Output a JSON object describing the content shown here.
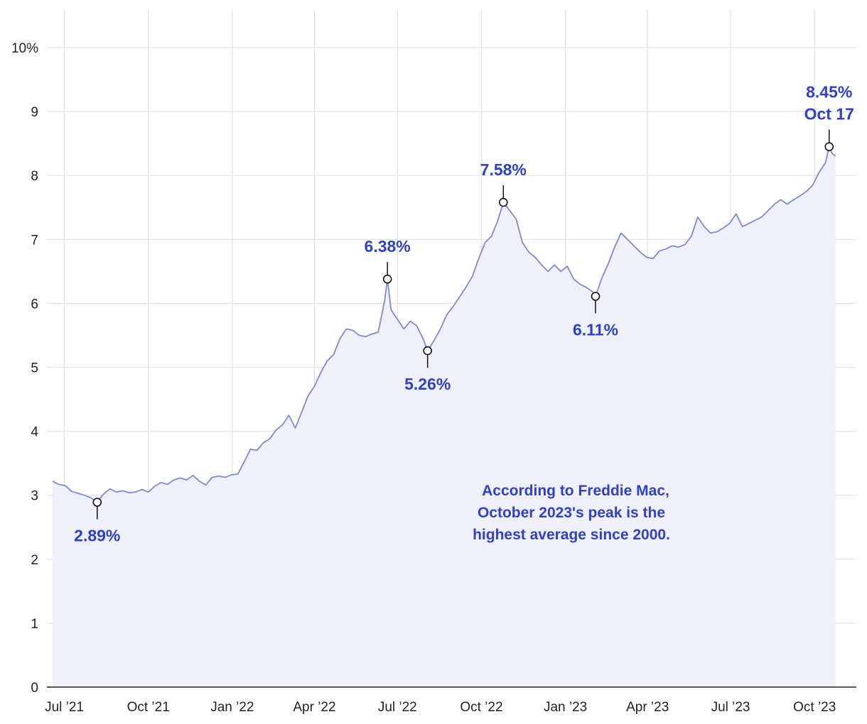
{
  "chart_data": {
    "type": "area",
    "y_axis": {
      "ylim": [
        0,
        10
      ],
      "ticks": [
        {
          "value": 0,
          "label": "0"
        },
        {
          "value": 1,
          "label": "1"
        },
        {
          "value": 2,
          "label": "2"
        },
        {
          "value": 3,
          "label": "3"
        },
        {
          "value": 4,
          "label": "4"
        },
        {
          "value": 5,
          "label": "5"
        },
        {
          "value": 6,
          "label": "6"
        },
        {
          "value": 7,
          "label": "7"
        },
        {
          "value": 8,
          "label": "8"
        },
        {
          "value": 9,
          "label": "9"
        },
        {
          "value": 10,
          "label": "10%"
        }
      ]
    },
    "x_axis": {
      "xlim": [
        "2021-06-15",
        "2023-11-08"
      ],
      "ticks": [
        {
          "date": "2021-07-01",
          "label": "Jul ’21"
        },
        {
          "date": "2021-10-01",
          "label": "Oct ’21"
        },
        {
          "date": "2022-01-01",
          "label": "Jan ’22"
        },
        {
          "date": "2022-04-01",
          "label": "Apr ’22"
        },
        {
          "date": "2022-07-01",
          "label": "Jul ’22"
        },
        {
          "date": "2022-10-01",
          "label": "Oct ’22"
        },
        {
          "date": "2023-01-01",
          "label": "Jan ’23"
        },
        {
          "date": "2023-04-01",
          "label": "Apr ’23"
        },
        {
          "date": "2023-07-01",
          "label": "Jul ’23"
        },
        {
          "date": "2023-10-01",
          "label": "Oct ’23"
        }
      ]
    },
    "grid": true,
    "series": [
      {
        "color": "#7b8ad4",
        "fill": "#eff0fa",
        "points": [
          [
            "2021-06-18",
            3.22
          ],
          [
            "2021-06-25",
            3.17
          ],
          [
            "2021-07-02",
            3.15
          ],
          [
            "2021-07-09",
            3.06
          ],
          [
            "2021-07-16",
            3.03
          ],
          [
            "2021-07-23",
            3.0
          ],
          [
            "2021-07-30",
            2.96
          ],
          [
            "2021-08-06",
            2.89
          ],
          [
            "2021-08-13",
            3.02
          ],
          [
            "2021-08-20",
            3.1
          ],
          [
            "2021-08-27",
            3.05
          ],
          [
            "2021-09-03",
            3.07
          ],
          [
            "2021-09-10",
            3.04
          ],
          [
            "2021-09-17",
            3.05
          ],
          [
            "2021-09-24",
            3.09
          ],
          [
            "2021-10-01",
            3.05
          ],
          [
            "2021-10-08",
            3.14
          ],
          [
            "2021-10-15",
            3.2
          ],
          [
            "2021-10-22",
            3.17
          ],
          [
            "2021-10-29",
            3.24
          ],
          [
            "2021-11-05",
            3.27
          ],
          [
            "2021-11-12",
            3.24
          ],
          [
            "2021-11-19",
            3.31
          ],
          [
            "2021-11-26",
            3.22
          ],
          [
            "2021-12-03",
            3.16
          ],
          [
            "2021-12-10",
            3.28
          ],
          [
            "2021-12-17",
            3.3
          ],
          [
            "2021-12-24",
            3.28
          ],
          [
            "2021-12-31",
            3.32
          ],
          [
            "2022-01-07",
            3.33
          ],
          [
            "2022-01-14",
            3.52
          ],
          [
            "2022-01-21",
            3.72
          ],
          [
            "2022-01-28",
            3.7
          ],
          [
            "2022-02-04",
            3.82
          ],
          [
            "2022-02-11",
            3.88
          ],
          [
            "2022-02-18",
            4.02
          ],
          [
            "2022-02-25",
            4.1
          ],
          [
            "2022-03-04",
            4.25
          ],
          [
            "2022-03-11",
            4.05
          ],
          [
            "2022-03-18",
            4.3
          ],
          [
            "2022-03-25",
            4.55
          ],
          [
            "2022-04-01",
            4.7
          ],
          [
            "2022-04-08",
            4.92
          ],
          [
            "2022-04-15",
            5.1
          ],
          [
            "2022-04-22",
            5.2
          ],
          [
            "2022-04-29",
            5.45
          ],
          [
            "2022-05-06",
            5.6
          ],
          [
            "2022-05-13",
            5.58
          ],
          [
            "2022-05-20",
            5.5
          ],
          [
            "2022-05-27",
            5.48
          ],
          [
            "2022-06-03",
            5.52
          ],
          [
            "2022-06-10",
            5.55
          ],
          [
            "2022-06-17",
            6.05
          ],
          [
            "2022-06-20",
            6.38
          ],
          [
            "2022-06-24",
            5.9
          ],
          [
            "2022-07-01",
            5.75
          ],
          [
            "2022-07-08",
            5.6
          ],
          [
            "2022-07-15",
            5.72
          ],
          [
            "2022-07-22",
            5.65
          ],
          [
            "2022-07-29",
            5.45
          ],
          [
            "2022-08-03",
            5.26
          ],
          [
            "2022-08-10",
            5.42
          ],
          [
            "2022-08-17",
            5.6
          ],
          [
            "2022-08-24",
            5.82
          ],
          [
            "2022-08-31",
            5.95
          ],
          [
            "2022-09-07",
            6.1
          ],
          [
            "2022-09-14",
            6.25
          ],
          [
            "2022-09-21",
            6.42
          ],
          [
            "2022-09-28",
            6.7
          ],
          [
            "2022-10-05",
            6.95
          ],
          [
            "2022-10-12",
            7.05
          ],
          [
            "2022-10-19",
            7.3
          ],
          [
            "2022-10-25",
            7.58
          ],
          [
            "2022-11-01",
            7.45
          ],
          [
            "2022-11-08",
            7.32
          ],
          [
            "2022-11-15",
            6.95
          ],
          [
            "2022-11-22",
            6.8
          ],
          [
            "2022-11-29",
            6.72
          ],
          [
            "2022-12-06",
            6.6
          ],
          [
            "2022-12-13",
            6.5
          ],
          [
            "2022-12-20",
            6.6
          ],
          [
            "2022-12-27",
            6.5
          ],
          [
            "2023-01-03",
            6.58
          ],
          [
            "2023-01-10",
            6.38
          ],
          [
            "2023-01-17",
            6.3
          ],
          [
            "2023-01-24",
            6.25
          ],
          [
            "2023-01-31",
            6.18
          ],
          [
            "2023-02-03",
            6.11
          ],
          [
            "2023-02-10",
            6.4
          ],
          [
            "2023-02-17",
            6.62
          ],
          [
            "2023-02-24",
            6.88
          ],
          [
            "2023-03-03",
            7.1
          ],
          [
            "2023-03-10",
            7.0
          ],
          [
            "2023-03-17",
            6.9
          ],
          [
            "2023-03-24",
            6.8
          ],
          [
            "2023-03-31",
            6.72
          ],
          [
            "2023-04-07",
            6.7
          ],
          [
            "2023-04-14",
            6.82
          ],
          [
            "2023-04-21",
            6.85
          ],
          [
            "2023-04-28",
            6.9
          ],
          [
            "2023-05-05",
            6.88
          ],
          [
            "2023-05-12",
            6.92
          ],
          [
            "2023-05-19",
            7.05
          ],
          [
            "2023-05-26",
            7.35
          ],
          [
            "2023-06-02",
            7.2
          ],
          [
            "2023-06-09",
            7.1
          ],
          [
            "2023-06-16",
            7.12
          ],
          [
            "2023-06-23",
            7.18
          ],
          [
            "2023-06-30",
            7.25
          ],
          [
            "2023-07-07",
            7.4
          ],
          [
            "2023-07-14",
            7.2
          ],
          [
            "2023-07-21",
            7.25
          ],
          [
            "2023-07-28",
            7.3
          ],
          [
            "2023-08-04",
            7.35
          ],
          [
            "2023-08-11",
            7.45
          ],
          [
            "2023-08-18",
            7.55
          ],
          [
            "2023-08-25",
            7.62
          ],
          [
            "2023-09-01",
            7.55
          ],
          [
            "2023-09-08",
            7.62
          ],
          [
            "2023-09-15",
            7.68
          ],
          [
            "2023-09-22",
            7.75
          ],
          [
            "2023-09-29",
            7.85
          ],
          [
            "2023-10-06",
            8.05
          ],
          [
            "2023-10-13",
            8.2
          ],
          [
            "2023-10-17",
            8.45
          ],
          [
            "2023-10-20",
            8.35
          ],
          [
            "2023-10-24",
            8.3
          ]
        ]
      }
    ],
    "annotations": [
      {
        "date": "2021-08-06",
        "value": 2.89,
        "lines": [
          "2.89%"
        ],
        "position": "below"
      },
      {
        "date": "2022-06-20",
        "value": 6.38,
        "lines": [
          "6.38%"
        ],
        "position": "above"
      },
      {
        "date": "2022-08-03",
        "value": 5.26,
        "lines": [
          "5.26%"
        ],
        "position": "below"
      },
      {
        "date": "2022-10-25",
        "value": 7.58,
        "lines": [
          "7.58%"
        ],
        "position": "above"
      },
      {
        "date": "2023-02-03",
        "value": 6.11,
        "lines": [
          "6.11%"
        ],
        "position": "below"
      },
      {
        "date": "2023-10-17",
        "value": 8.45,
        "lines": [
          "8.45%",
          "Oct 17"
        ],
        "position": "above"
      }
    ],
    "note": {
      "lines": [
        "According to Freddie Mac,",
        "October 2023's peak is the",
        "highest average since 2000."
      ]
    }
  }
}
